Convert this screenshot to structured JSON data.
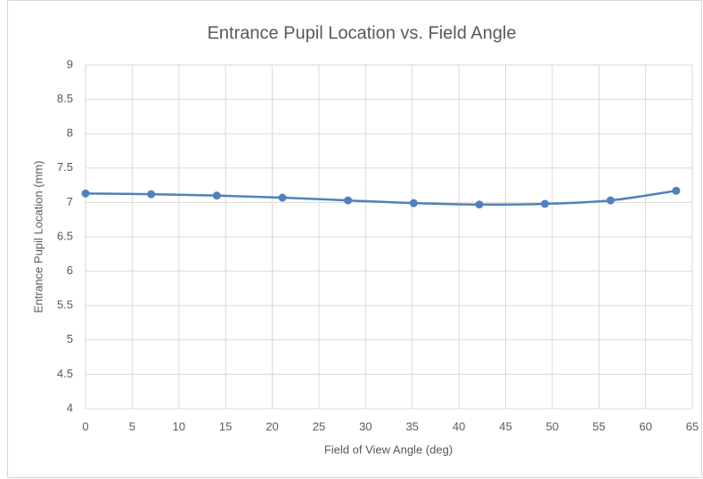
{
  "chart_data": {
    "type": "line",
    "title": "Entrance Pupil Location vs. Field Angle",
    "x_label": "Field of View Angle (deg)",
    "y_label": "Entrance Pupil Location (mm)",
    "series": [
      {
        "name": "Entrance Pupil Location",
        "color": "#4f81bd",
        "x": [
          0,
          7.03,
          14.06,
          21.09,
          28.12,
          35.15,
          42.18,
          49.21,
          56.24,
          63.27
        ],
        "values": [
          7.13,
          7.12,
          7.1,
          7.07,
          7.03,
          6.99,
          6.97,
          6.98,
          7.03,
          7.17
        ]
      }
    ],
    "xlim": [
      0,
      65
    ],
    "xticks": [
      0,
      5,
      10,
      15,
      20,
      25,
      30,
      35,
      40,
      45,
      50,
      55,
      60,
      65
    ],
    "ylim": [
      4,
      9
    ],
    "yticks": [
      4,
      4.5,
      5,
      5.5,
      6,
      6.5,
      7,
      7.5,
      8,
      8.5,
      9
    ],
    "grid": true
  }
}
